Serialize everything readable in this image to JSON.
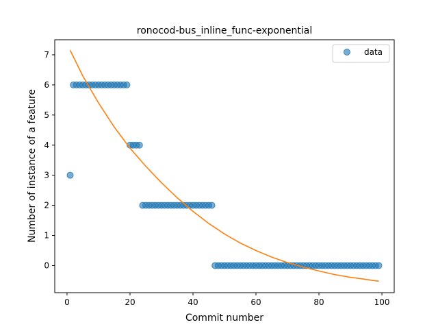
{
  "chart_data": {
    "type": "scatter",
    "title": "ronocod-bus_inline_func-exponential",
    "xlabel": "Commit number",
    "ylabel": "Number of instance of a feature",
    "xlim": [
      -3.9,
      103.9
    ],
    "ylim": [
      -0.9,
      7.5
    ],
    "xticks": [
      0,
      20,
      40,
      60,
      80,
      100
    ],
    "yticks": [
      0,
      1,
      2,
      3,
      4,
      5,
      6,
      7
    ],
    "grid": false,
    "legend_position": "top-right",
    "series": [
      {
        "name": "data",
        "kind": "scatter",
        "color": "#1f77b4",
        "points": [
          [
            1,
            3
          ],
          [
            2,
            6
          ],
          [
            3,
            6
          ],
          [
            4,
            6
          ],
          [
            5,
            6
          ],
          [
            6,
            6
          ],
          [
            7,
            6
          ],
          [
            8,
            6
          ],
          [
            9,
            6
          ],
          [
            10,
            6
          ],
          [
            11,
            6
          ],
          [
            12,
            6
          ],
          [
            13,
            6
          ],
          [
            14,
            6
          ],
          [
            15,
            6
          ],
          [
            16,
            6
          ],
          [
            17,
            6
          ],
          [
            18,
            6
          ],
          [
            19,
            6
          ],
          [
            20,
            4
          ],
          [
            21,
            4
          ],
          [
            22,
            4
          ],
          [
            23,
            4
          ],
          [
            24,
            2
          ],
          [
            25,
            2
          ],
          [
            26,
            2
          ],
          [
            27,
            2
          ],
          [
            28,
            2
          ],
          [
            29,
            2
          ],
          [
            30,
            2
          ],
          [
            31,
            2
          ],
          [
            32,
            2
          ],
          [
            33,
            2
          ],
          [
            34,
            2
          ],
          [
            35,
            2
          ],
          [
            36,
            2
          ],
          [
            37,
            2
          ],
          [
            38,
            2
          ],
          [
            39,
            2
          ],
          [
            40,
            2
          ],
          [
            41,
            2
          ],
          [
            42,
            2
          ],
          [
            43,
            2
          ],
          [
            44,
            2
          ],
          [
            45,
            2
          ],
          [
            46,
            2
          ],
          [
            47,
            0
          ],
          [
            48,
            0
          ],
          [
            49,
            0
          ],
          [
            50,
            0
          ],
          [
            51,
            0
          ],
          [
            52,
            0
          ],
          [
            53,
            0
          ],
          [
            54,
            0
          ],
          [
            55,
            0
          ],
          [
            56,
            0
          ],
          [
            57,
            0
          ],
          [
            58,
            0
          ],
          [
            59,
            0
          ],
          [
            60,
            0
          ],
          [
            61,
            0
          ],
          [
            62,
            0
          ],
          [
            63,
            0
          ],
          [
            64,
            0
          ],
          [
            65,
            0
          ],
          [
            66,
            0
          ],
          [
            67,
            0
          ],
          [
            68,
            0
          ],
          [
            69,
            0
          ],
          [
            70,
            0
          ],
          [
            71,
            0
          ],
          [
            72,
            0
          ],
          [
            73,
            0
          ],
          [
            74,
            0
          ],
          [
            75,
            0
          ],
          [
            76,
            0
          ],
          [
            77,
            0
          ],
          [
            78,
            0
          ],
          [
            79,
            0
          ],
          [
            80,
            0
          ],
          [
            81,
            0
          ],
          [
            82,
            0
          ],
          [
            83,
            0
          ],
          [
            84,
            0
          ],
          [
            85,
            0
          ],
          [
            86,
            0
          ],
          [
            87,
            0
          ],
          [
            88,
            0
          ],
          [
            89,
            0
          ],
          [
            90,
            0
          ],
          [
            91,
            0
          ],
          [
            92,
            0
          ],
          [
            93,
            0
          ],
          [
            94,
            0
          ],
          [
            95,
            0
          ],
          [
            96,
            0
          ],
          [
            97,
            0
          ],
          [
            98,
            0
          ],
          [
            99,
            0
          ]
        ]
      },
      {
        "kind": "line",
        "color": "#ff7f0e",
        "points": [
          [
            1,
            7.15
          ],
          [
            5,
            6.3
          ],
          [
            10,
            5.4
          ],
          [
            15,
            4.6
          ],
          [
            20,
            3.9
          ],
          [
            25,
            3.3
          ],
          [
            30,
            2.75
          ],
          [
            35,
            2.25
          ],
          [
            40,
            1.8
          ],
          [
            45,
            1.4
          ],
          [
            50,
            1.05
          ],
          [
            55,
            0.75
          ],
          [
            60,
            0.5
          ],
          [
            65,
            0.28
          ],
          [
            70,
            0.1
          ],
          [
            75,
            -0.05
          ],
          [
            80,
            -0.18
          ],
          [
            85,
            -0.3
          ],
          [
            90,
            -0.39
          ],
          [
            95,
            -0.46
          ],
          [
            99,
            -0.52
          ]
        ]
      }
    ]
  }
}
